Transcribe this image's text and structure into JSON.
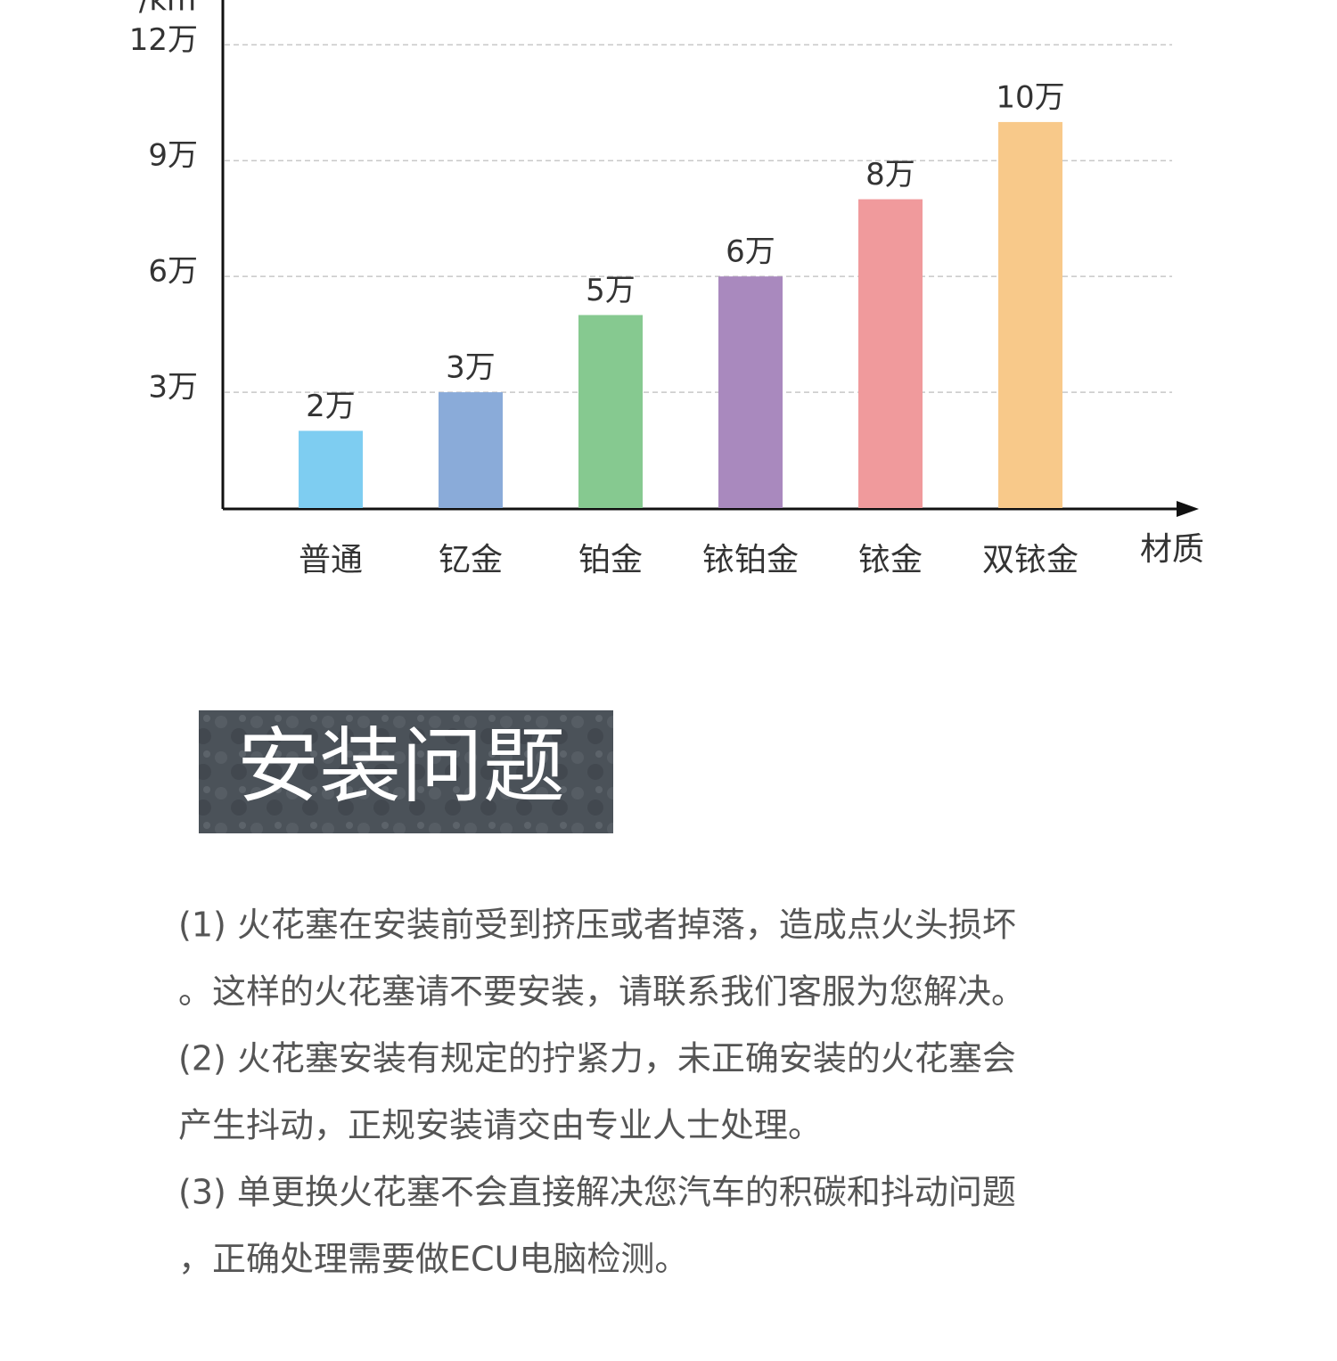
{
  "chart_data": {
    "type": "bar",
    "y_axis_label": "/km",
    "x_axis_label": "材质",
    "categories": [
      "普通",
      "钇金",
      "铂金",
      "铱铂金",
      "铱金",
      "双铱金"
    ],
    "values": [
      2,
      3,
      5,
      6,
      8,
      10
    ],
    "value_labels": [
      "2万",
      "3万",
      "5万",
      "6万",
      "8万",
      "10万"
    ],
    "colors": [
      "#7ecdf1",
      "#8aabd9",
      "#86c990",
      "#a989be",
      "#f09a9c",
      "#f8c98a"
    ],
    "ylim": [
      0,
      13
    ],
    "yticks": [
      {
        "value": 3,
        "label": "3万"
      },
      {
        "value": 6,
        "label": "6万"
      },
      {
        "value": 9,
        "label": "9万"
      },
      {
        "value": 12,
        "label": "12万"
      }
    ],
    "grid": true
  },
  "install_section": {
    "heading": "安装问题",
    "lines": [
      "(1) 火花塞在安装前受到挤压或者掉落，造成点火头损坏",
      "。这样的火花塞请不要安装，请联系我们客服为您解决。",
      "(2) 火花塞安装有规定的拧紧力，未正确安装的火花塞会",
      "产生抖动，正规安装请交由专业人士处理。",
      "(3) 单更换火花塞不会直接解决您汽车的积碳和抖动问题",
      "，正确处理需要做ECU电脑检测。"
    ]
  }
}
